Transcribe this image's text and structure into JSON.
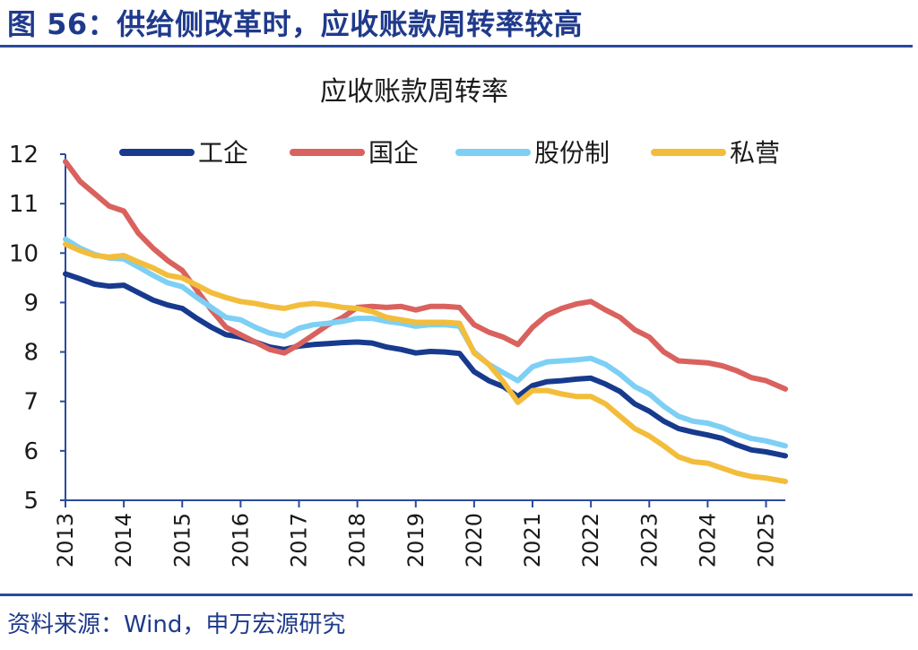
{
  "figure": {
    "title": "图 56：供给侧改革时，应收账款周转率较高",
    "source": "资料来源：Wind，申万宏源研究"
  },
  "colors": {
    "frame": "#2b4a9c",
    "text": "#1f3a8c"
  },
  "chart_data": {
    "type": "line",
    "title": "应收账款周转率",
    "xlabel": "",
    "ylabel": "",
    "xlim": [
      2013,
      2025.33
    ],
    "ylim": [
      5,
      12
    ],
    "yticks": [
      5,
      6,
      7,
      8,
      9,
      10,
      11,
      12
    ],
    "xticks": [
      2013,
      2014,
      2015,
      2016,
      2017,
      2018,
      2019,
      2020,
      2021,
      2022,
      2023,
      2024,
      2025
    ],
    "legend_position": "top",
    "series": [
      {
        "name": "工企",
        "color": "#173a8e",
        "points": [
          [
            2013,
            9.58
          ],
          [
            2013.25,
            9.48
          ],
          [
            2013.5,
            9.37
          ],
          [
            2013.75,
            9.33
          ],
          [
            2014,
            9.35
          ],
          [
            2014.25,
            9.2
          ],
          [
            2014.5,
            9.05
          ],
          [
            2014.75,
            8.95
          ],
          [
            2015,
            8.88
          ],
          [
            2015.25,
            8.68
          ],
          [
            2015.5,
            8.5
          ],
          [
            2015.75,
            8.35
          ],
          [
            2016,
            8.3
          ],
          [
            2016.25,
            8.2
          ],
          [
            2016.5,
            8.1
          ],
          [
            2016.75,
            8.05
          ],
          [
            2017,
            8.12
          ],
          [
            2017.25,
            8.15
          ],
          [
            2017.5,
            8.17
          ],
          [
            2017.75,
            8.19
          ],
          [
            2018,
            8.2
          ],
          [
            2018.25,
            8.18
          ],
          [
            2018.5,
            8.1
          ],
          [
            2018.75,
            8.05
          ],
          [
            2019,
            7.98
          ],
          [
            2019.25,
            8.01
          ],
          [
            2019.5,
            8.0
          ],
          [
            2019.75,
            7.97
          ],
          [
            2020,
            7.6
          ],
          [
            2020.25,
            7.42
          ],
          [
            2020.5,
            7.3
          ],
          [
            2020.75,
            7.1
          ],
          [
            2021,
            7.32
          ],
          [
            2021.25,
            7.4
          ],
          [
            2021.5,
            7.42
          ],
          [
            2021.75,
            7.45
          ],
          [
            2022,
            7.47
          ],
          [
            2022.25,
            7.35
          ],
          [
            2022.5,
            7.2
          ],
          [
            2022.75,
            6.95
          ],
          [
            2023,
            6.8
          ],
          [
            2023.25,
            6.6
          ],
          [
            2023.5,
            6.45
          ],
          [
            2023.75,
            6.38
          ],
          [
            2024,
            6.32
          ],
          [
            2024.25,
            6.25
          ],
          [
            2024.5,
            6.12
          ],
          [
            2024.75,
            6.02
          ],
          [
            2025,
            5.98
          ],
          [
            2025.33,
            5.9
          ]
        ]
      },
      {
        "name": "国企",
        "color": "#d9625e",
        "points": [
          [
            2013,
            11.85
          ],
          [
            2013.25,
            11.45
          ],
          [
            2013.5,
            11.2
          ],
          [
            2013.75,
            10.95
          ],
          [
            2014,
            10.85
          ],
          [
            2014.25,
            10.4
          ],
          [
            2014.5,
            10.1
          ],
          [
            2014.75,
            9.85
          ],
          [
            2015,
            9.65
          ],
          [
            2015.25,
            9.25
          ],
          [
            2015.5,
            8.85
          ],
          [
            2015.75,
            8.5
          ],
          [
            2016,
            8.35
          ],
          [
            2016.25,
            8.2
          ],
          [
            2016.5,
            8.05
          ],
          [
            2016.75,
            7.98
          ],
          [
            2017,
            8.15
          ],
          [
            2017.25,
            8.35
          ],
          [
            2017.5,
            8.55
          ],
          [
            2017.75,
            8.7
          ],
          [
            2018,
            8.9
          ],
          [
            2018.25,
            8.92
          ],
          [
            2018.5,
            8.9
          ],
          [
            2018.75,
            8.92
          ],
          [
            2019,
            8.85
          ],
          [
            2019.25,
            8.92
          ],
          [
            2019.5,
            8.92
          ],
          [
            2019.75,
            8.9
          ],
          [
            2020,
            8.55
          ],
          [
            2020.25,
            8.4
          ],
          [
            2020.5,
            8.3
          ],
          [
            2020.75,
            8.15
          ],
          [
            2021,
            8.5
          ],
          [
            2021.25,
            8.75
          ],
          [
            2021.5,
            8.88
          ],
          [
            2021.75,
            8.97
          ],
          [
            2022,
            9.02
          ],
          [
            2022.25,
            8.85
          ],
          [
            2022.5,
            8.7
          ],
          [
            2022.75,
            8.45
          ],
          [
            2023,
            8.3
          ],
          [
            2023.25,
            8.0
          ],
          [
            2023.5,
            7.82
          ],
          [
            2023.75,
            7.8
          ],
          [
            2024,
            7.78
          ],
          [
            2024.25,
            7.72
          ],
          [
            2024.5,
            7.62
          ],
          [
            2024.75,
            7.48
          ],
          [
            2025,
            7.42
          ],
          [
            2025.33,
            7.25
          ]
        ]
      },
      {
        "name": "股份制",
        "color": "#7dd0f4",
        "points": [
          [
            2013,
            10.28
          ],
          [
            2013.25,
            10.1
          ],
          [
            2013.5,
            9.97
          ],
          [
            2013.75,
            9.9
          ],
          [
            2014,
            9.88
          ],
          [
            2014.25,
            9.72
          ],
          [
            2014.5,
            9.55
          ],
          [
            2014.75,
            9.4
          ],
          [
            2015,
            9.32
          ],
          [
            2015.25,
            9.1
          ],
          [
            2015.5,
            8.9
          ],
          [
            2015.75,
            8.7
          ],
          [
            2016,
            8.65
          ],
          [
            2016.25,
            8.5
          ],
          [
            2016.5,
            8.38
          ],
          [
            2016.75,
            8.32
          ],
          [
            2017,
            8.48
          ],
          [
            2017.25,
            8.55
          ],
          [
            2017.5,
            8.58
          ],
          [
            2017.75,
            8.62
          ],
          [
            2018,
            8.68
          ],
          [
            2018.25,
            8.68
          ],
          [
            2018.5,
            8.62
          ],
          [
            2018.75,
            8.58
          ],
          [
            2019,
            8.52
          ],
          [
            2019.25,
            8.55
          ],
          [
            2019.5,
            8.55
          ],
          [
            2019.75,
            8.52
          ],
          [
            2020,
            8.0
          ],
          [
            2020.25,
            7.75
          ],
          [
            2020.5,
            7.58
          ],
          [
            2020.75,
            7.42
          ],
          [
            2021,
            7.7
          ],
          [
            2021.25,
            7.8
          ],
          [
            2021.5,
            7.82
          ],
          [
            2021.75,
            7.84
          ],
          [
            2022,
            7.87
          ],
          [
            2022.25,
            7.75
          ],
          [
            2022.5,
            7.55
          ],
          [
            2022.75,
            7.3
          ],
          [
            2023,
            7.15
          ],
          [
            2023.25,
            6.9
          ],
          [
            2023.5,
            6.7
          ],
          [
            2023.75,
            6.6
          ],
          [
            2024,
            6.56
          ],
          [
            2024.25,
            6.47
          ],
          [
            2024.5,
            6.35
          ],
          [
            2024.75,
            6.25
          ],
          [
            2025,
            6.2
          ],
          [
            2025.33,
            6.1
          ]
        ]
      },
      {
        "name": "私营",
        "color": "#f3bd3c",
        "points": [
          [
            2013,
            10.18
          ],
          [
            2013.25,
            10.05
          ],
          [
            2013.5,
            9.95
          ],
          [
            2013.75,
            9.92
          ],
          [
            2014,
            9.95
          ],
          [
            2014.25,
            9.82
          ],
          [
            2014.5,
            9.7
          ],
          [
            2014.75,
            9.55
          ],
          [
            2015,
            9.5
          ],
          [
            2015.25,
            9.35
          ],
          [
            2015.5,
            9.2
          ],
          [
            2015.75,
            9.1
          ],
          [
            2016,
            9.02
          ],
          [
            2016.25,
            8.98
          ],
          [
            2016.5,
            8.92
          ],
          [
            2016.75,
            8.88
          ],
          [
            2017,
            8.95
          ],
          [
            2017.25,
            8.98
          ],
          [
            2017.5,
            8.95
          ],
          [
            2017.75,
            8.9
          ],
          [
            2018,
            8.88
          ],
          [
            2018.25,
            8.82
          ],
          [
            2018.5,
            8.7
          ],
          [
            2018.75,
            8.65
          ],
          [
            2019,
            8.6
          ],
          [
            2019.25,
            8.6
          ],
          [
            2019.5,
            8.6
          ],
          [
            2019.75,
            8.58
          ],
          [
            2020,
            7.98
          ],
          [
            2020.25,
            7.75
          ],
          [
            2020.5,
            7.4
          ],
          [
            2020.75,
            6.98
          ],
          [
            2021,
            7.22
          ],
          [
            2021.25,
            7.22
          ],
          [
            2021.5,
            7.15
          ],
          [
            2021.75,
            7.1
          ],
          [
            2022,
            7.1
          ],
          [
            2022.25,
            6.95
          ],
          [
            2022.5,
            6.7
          ],
          [
            2022.75,
            6.45
          ],
          [
            2023,
            6.3
          ],
          [
            2023.25,
            6.1
          ],
          [
            2023.5,
            5.88
          ],
          [
            2023.75,
            5.78
          ],
          [
            2024,
            5.75
          ],
          [
            2024.25,
            5.65
          ],
          [
            2024.5,
            5.55
          ],
          [
            2024.75,
            5.48
          ],
          [
            2025,
            5.45
          ],
          [
            2025.33,
            5.38
          ]
        ]
      }
    ]
  }
}
